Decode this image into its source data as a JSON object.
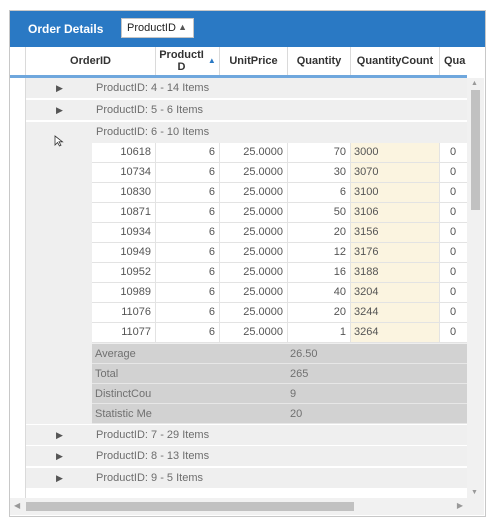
{
  "header": {
    "title": "Order Details",
    "group_chip": "ProductID"
  },
  "columns": [
    "OrderID",
    "ProductI\nD",
    "UnitPrice",
    "Quantity",
    "QuantityCount",
    "Qua"
  ],
  "groups_before": [
    {
      "label": "ProductID: 4 - 14 Items"
    },
    {
      "label": "ProductID: 5 - 6 Items"
    },
    {
      "label": "ProductID: 6 - 10 Items"
    }
  ],
  "rows": [
    {
      "order": "10618",
      "product": "6",
      "price": "25.0000",
      "qty": "70",
      "qc": "3000",
      "qua": "0"
    },
    {
      "order": "10734",
      "product": "6",
      "price": "25.0000",
      "qty": "30",
      "qc": "3070",
      "qua": "0"
    },
    {
      "order": "10830",
      "product": "6",
      "price": "25.0000",
      "qty": "6",
      "qc": "3100",
      "qua": "0"
    },
    {
      "order": "10871",
      "product": "6",
      "price": "25.0000",
      "qty": "50",
      "qc": "3106",
      "qua": "0"
    },
    {
      "order": "10934",
      "product": "6",
      "price": "25.0000",
      "qty": "20",
      "qc": "3156",
      "qua": "0"
    },
    {
      "order": "10949",
      "product": "6",
      "price": "25.0000",
      "qty": "12",
      "qc": "3176",
      "qua": "0"
    },
    {
      "order": "10952",
      "product": "6",
      "price": "25.0000",
      "qty": "16",
      "qc": "3188",
      "qua": "0"
    },
    {
      "order": "10989",
      "product": "6",
      "price": "25.0000",
      "qty": "40",
      "qc": "3204",
      "qua": "0"
    },
    {
      "order": "11076",
      "product": "6",
      "price": "25.0000",
      "qty": "20",
      "qc": "3244",
      "qua": "0"
    },
    {
      "order": "11077",
      "product": "6",
      "price": "25.0000",
      "qty": "1",
      "qc": "3264",
      "qua": "0"
    }
  ],
  "summary": [
    {
      "label": "Average",
      "value": "26.50"
    },
    {
      "label": "Total",
      "value": "265"
    },
    {
      "label": "DistinctCou",
      "value": "9"
    },
    {
      "label": "Statistic Me",
      "value": "20"
    }
  ],
  "groups_after": [
    {
      "label": "ProductID: 7 - 29 Items"
    },
    {
      "label": "ProductID: 8 - 13 Items"
    },
    {
      "label": "ProductID: 9 - 5 Items"
    }
  ],
  "colors": {
    "header": "#2a79c4",
    "accent_border": "#6fa7dd",
    "qc_fill": "#fbf4e0",
    "summary_fill": "#d2d2d2",
    "group_fill": "#efefef"
  },
  "icons": {
    "expander": "triangle-right-icon",
    "sort": "sort-ascending-icon",
    "chip_sort": "sort-ascending-icon"
  }
}
